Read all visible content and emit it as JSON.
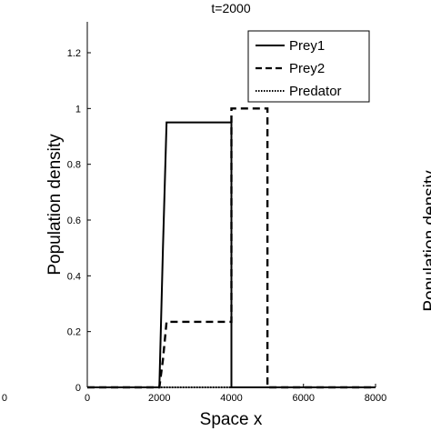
{
  "chart_data": {
    "type": "line",
    "title": "t=2000",
    "xlabel": "Space x",
    "ylabel": "Population density",
    "xlim": [
      0,
      8000
    ],
    "ylim": [
      0,
      1.3
    ],
    "x_ticks": [
      "0",
      "2000",
      "4000",
      "6000",
      "8000"
    ],
    "y_ticks": [
      "0",
      "0.2",
      "0.4",
      "0.6",
      "0.8",
      "1",
      "1.2"
    ],
    "legend_position": "top-right",
    "grid": false,
    "series": [
      {
        "name": "Prey1",
        "style": "solid",
        "x": [
          0,
          2000,
          2100,
          2200,
          4000,
          4000,
          8000
        ],
        "y": [
          0,
          0,
          0.5,
          0.95,
          0.95,
          0,
          0
        ]
      },
      {
        "name": "Prey2",
        "style": "dashed",
        "x": [
          0,
          2000,
          2100,
          2200,
          4000,
          4000,
          5000,
          5000,
          8000
        ],
        "y": [
          0,
          0,
          0.1,
          0.235,
          0.235,
          1.0,
          1.0,
          0,
          0
        ]
      },
      {
        "name": "Predator",
        "style": "dotted",
        "x": [
          0,
          8000
        ],
        "y": [
          0,
          0
        ]
      }
    ]
  },
  "partial_neighbor": {
    "left_tick": "0",
    "right_label": "Population density"
  }
}
